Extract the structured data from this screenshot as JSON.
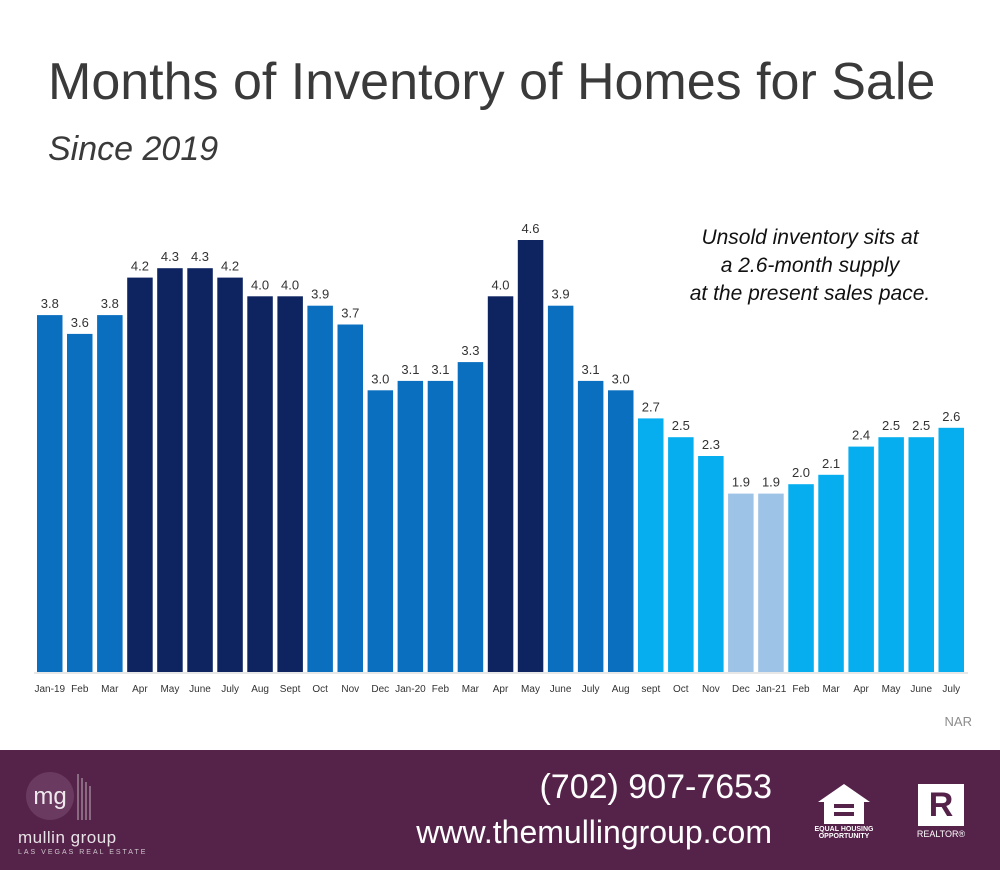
{
  "title": "Months of Inventory of Homes for Sale",
  "subtitle": "Since 2019",
  "annotation": [
    "Unsold inventory sits at",
    "a 2.6-month supply",
    "at the present sales pace."
  ],
  "source": "NAR",
  "colors": {
    "navy": "#0d2460",
    "mid_blue": "#0b6fc0",
    "bright_blue": "#06aeef",
    "light_blue": "#9dc3e6",
    "footer": "#55234a"
  },
  "chart_data": {
    "type": "bar",
    "categories": [
      "Jan-19",
      "Feb",
      "Mar",
      "Apr",
      "May",
      "June",
      "July",
      "Aug",
      "Sept",
      "Oct",
      "Nov",
      "Dec",
      "Jan-20",
      "Feb",
      "Mar",
      "Apr",
      "May",
      "June",
      "July",
      "Aug",
      "sept",
      "Oct",
      "Nov",
      "Dec",
      "Jan-21",
      "Feb",
      "Mar",
      "Apr",
      "May",
      "June",
      "July"
    ],
    "values": [
      3.8,
      3.6,
      3.8,
      4.2,
      4.3,
      4.3,
      4.2,
      4.0,
      4.0,
      3.9,
      3.7,
      3.0,
      3.1,
      3.1,
      3.3,
      4.0,
      4.6,
      3.9,
      3.1,
      3.0,
      2.7,
      2.5,
      2.3,
      1.9,
      1.9,
      2.0,
      2.1,
      2.4,
      2.5,
      2.5,
      2.6
    ],
    "labels": [
      "3.8",
      "3.6",
      "3.8",
      "4.2",
      "4.3",
      "4.3",
      "4.2",
      "4.0",
      "4.0",
      "3.9",
      "3.7",
      "3.0",
      "3.1",
      "3.1",
      "3.3",
      "4.0",
      "4.6",
      "3.9",
      "3.1",
      "3.0",
      "2.7",
      "2.5",
      "2.3",
      "1.9",
      "1.9",
      "2.0",
      "2.1",
      "2.4",
      "2.5",
      "2.5",
      "2.6"
    ],
    "bar_colors": [
      "mid_blue",
      "mid_blue",
      "mid_blue",
      "navy",
      "navy",
      "navy",
      "navy",
      "navy",
      "navy",
      "mid_blue",
      "mid_blue",
      "mid_blue",
      "mid_blue",
      "mid_blue",
      "mid_blue",
      "navy",
      "navy",
      "mid_blue",
      "mid_blue",
      "mid_blue",
      "bright_blue",
      "bright_blue",
      "bright_blue",
      "light_blue",
      "light_blue",
      "bright_blue",
      "bright_blue",
      "bright_blue",
      "bright_blue",
      "bright_blue",
      "bright_blue"
    ],
    "ylim": [
      0,
      4.6
    ],
    "grid": false,
    "legend": "none"
  },
  "footer": {
    "logo_initials": "mg",
    "logo_name": "mullin group",
    "logo_tagline": "LAS VEGAS REAL ESTATE",
    "phone": "(702) 907-7653",
    "website": "www.themullingroup.com",
    "eho_text": [
      "EQUAL HOUSING",
      "OPPORTUNITY"
    ],
    "realtor_mark": "R",
    "realtor_text": "REALTOR®"
  }
}
